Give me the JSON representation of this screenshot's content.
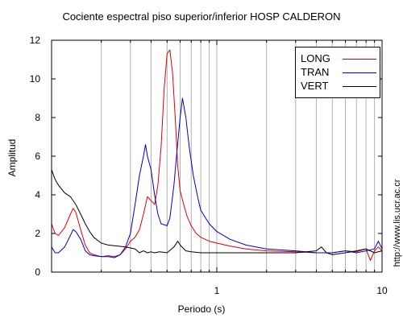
{
  "chart_data": {
    "type": "line",
    "title": "Cociente espectral piso superior/inferior  HOSP CALDERON",
    "xlabel": "Periodo (s)",
    "ylabel": "Amplitud",
    "xscale": "log",
    "xlim": [
      0.1,
      10
    ],
    "ylim": [
      0,
      12
    ],
    "x_tick_labels": [
      "1",
      "10"
    ],
    "y_ticks": [
      0,
      2,
      4,
      6,
      8,
      10,
      12
    ],
    "grid": "vertical",
    "legend_position": "top-right",
    "series": [
      {
        "name": "LONG",
        "color": "#e00000",
        "points": [
          [
            0.1,
            2.5
          ],
          [
            0.105,
            2.0
          ],
          [
            0.11,
            1.9
          ],
          [
            0.12,
            2.3
          ],
          [
            0.13,
            3.0
          ],
          [
            0.135,
            3.3
          ],
          [
            0.14,
            3.1
          ],
          [
            0.15,
            2.2
          ],
          [
            0.16,
            1.4
          ],
          [
            0.17,
            1.0
          ],
          [
            0.18,
            0.9
          ],
          [
            0.2,
            0.8
          ],
          [
            0.22,
            0.85
          ],
          [
            0.24,
            0.8
          ],
          [
            0.26,
            0.9
          ],
          [
            0.28,
            1.2
          ],
          [
            0.3,
            1.6
          ],
          [
            0.32,
            1.8
          ],
          [
            0.34,
            2.2
          ],
          [
            0.36,
            3.0
          ],
          [
            0.38,
            3.9
          ],
          [
            0.4,
            3.7
          ],
          [
            0.42,
            3.5
          ],
          [
            0.44,
            4.5
          ],
          [
            0.46,
            6.5
          ],
          [
            0.48,
            9.5
          ],
          [
            0.5,
            11.3
          ],
          [
            0.52,
            11.5
          ],
          [
            0.54,
            10.3
          ],
          [
            0.56,
            8.0
          ],
          [
            0.58,
            5.5
          ],
          [
            0.6,
            4.2
          ],
          [
            0.63,
            3.5
          ],
          [
            0.66,
            2.9
          ],
          [
            0.7,
            2.4
          ],
          [
            0.75,
            2.0
          ],
          [
            0.8,
            1.8
          ],
          [
            0.9,
            1.6
          ],
          [
            1.0,
            1.5
          ],
          [
            1.2,
            1.35
          ],
          [
            1.5,
            1.2
          ],
          [
            2.0,
            1.1
          ],
          [
            3.0,
            1.05
          ],
          [
            4.0,
            1.0
          ],
          [
            5.0,
            1.0
          ],
          [
            6.0,
            1.1
          ],
          [
            7.0,
            1.05
          ],
          [
            8.0,
            1.2
          ],
          [
            8.5,
            0.6
          ],
          [
            9.0,
            1.1
          ],
          [
            9.5,
            1.3
          ],
          [
            10.0,
            1.1
          ]
        ]
      },
      {
        "name": "TRAN",
        "color": "#0000cc",
        "points": [
          [
            0.1,
            1.3
          ],
          [
            0.105,
            1.0
          ],
          [
            0.11,
            1.0
          ],
          [
            0.12,
            1.3
          ],
          [
            0.13,
            1.9
          ],
          [
            0.135,
            2.2
          ],
          [
            0.14,
            2.1
          ],
          [
            0.15,
            1.7
          ],
          [
            0.16,
            1.1
          ],
          [
            0.17,
            0.9
          ],
          [
            0.18,
            0.85
          ],
          [
            0.2,
            0.8
          ],
          [
            0.22,
            0.8
          ],
          [
            0.24,
            0.75
          ],
          [
            0.26,
            0.9
          ],
          [
            0.28,
            1.3
          ],
          [
            0.3,
            2.0
          ],
          [
            0.32,
            3.5
          ],
          [
            0.34,
            5.0
          ],
          [
            0.36,
            6.0
          ],
          [
            0.37,
            6.6
          ],
          [
            0.38,
            6.0
          ],
          [
            0.4,
            5.3
          ],
          [
            0.42,
            4.0
          ],
          [
            0.44,
            3.0
          ],
          [
            0.46,
            2.5
          ],
          [
            0.5,
            2.4
          ],
          [
            0.52,
            2.8
          ],
          [
            0.55,
            4.5
          ],
          [
            0.57,
            6.0
          ],
          [
            0.6,
            8.0
          ],
          [
            0.62,
            9.0
          ],
          [
            0.65,
            8.0
          ],
          [
            0.68,
            6.5
          ],
          [
            0.72,
            5.0
          ],
          [
            0.77,
            3.8
          ],
          [
            0.8,
            3.2
          ],
          [
            0.9,
            2.5
          ],
          [
            1.0,
            2.1
          ],
          [
            1.2,
            1.7
          ],
          [
            1.5,
            1.4
          ],
          [
            2.0,
            1.2
          ],
          [
            3.0,
            1.1
          ],
          [
            4.0,
            1.0
          ],
          [
            5.0,
            1.0
          ],
          [
            6.0,
            1.1
          ],
          [
            7.0,
            1.0
          ],
          [
            8.0,
            1.1
          ],
          [
            9.0,
            1.2
          ],
          [
            9.5,
            1.6
          ],
          [
            10.0,
            1.2
          ]
        ]
      },
      {
        "name": "VERT",
        "color": "#000000",
        "points": [
          [
            0.1,
            5.3
          ],
          [
            0.105,
            4.8
          ],
          [
            0.11,
            4.5
          ],
          [
            0.12,
            4.1
          ],
          [
            0.13,
            3.9
          ],
          [
            0.14,
            3.5
          ],
          [
            0.15,
            3.0
          ],
          [
            0.16,
            2.5
          ],
          [
            0.17,
            2.1
          ],
          [
            0.18,
            1.8
          ],
          [
            0.2,
            1.5
          ],
          [
            0.22,
            1.4
          ],
          [
            0.25,
            1.35
          ],
          [
            0.28,
            1.3
          ],
          [
            0.3,
            1.25
          ],
          [
            0.32,
            1.2
          ],
          [
            0.34,
            1.0
          ],
          [
            0.36,
            1.1
          ],
          [
            0.38,
            1.0
          ],
          [
            0.4,
            1.05
          ],
          [
            0.42,
            1.0
          ],
          [
            0.45,
            1.05
          ],
          [
            0.5,
            1.0
          ],
          [
            0.55,
            1.3
          ],
          [
            0.58,
            1.6
          ],
          [
            0.6,
            1.4
          ],
          [
            0.65,
            1.1
          ],
          [
            0.7,
            1.05
          ],
          [
            0.8,
            1.0
          ],
          [
            1.0,
            1.0
          ],
          [
            1.5,
            1.0
          ],
          [
            2.0,
            1.0
          ],
          [
            3.0,
            1.0
          ],
          [
            4.0,
            1.1
          ],
          [
            4.3,
            1.3
          ],
          [
            4.6,
            1.0
          ],
          [
            5.0,
            0.9
          ],
          [
            6.0,
            1.0
          ],
          [
            7.0,
            1.1
          ],
          [
            8.0,
            1.2
          ],
          [
            9.0,
            1.0
          ],
          [
            10.0,
            1.1
          ]
        ]
      }
    ]
  },
  "credit": "http://www.lis.ucr.ac.cr"
}
